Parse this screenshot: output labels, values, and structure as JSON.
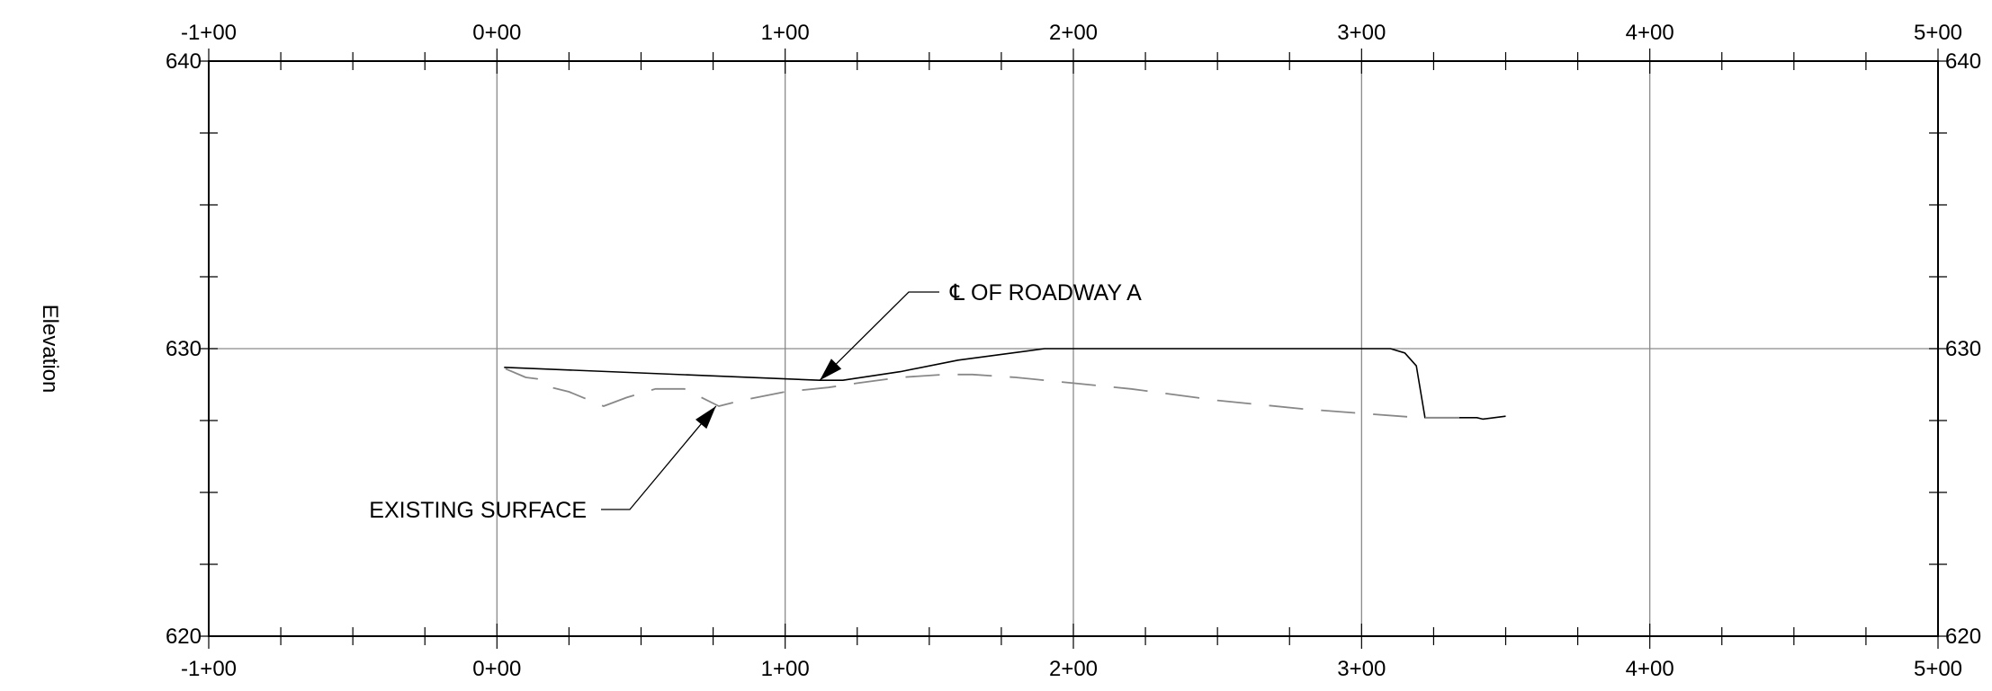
{
  "chart_data": {
    "type": "line",
    "title": "",
    "xlabel": "",
    "ylabel": "Elevation",
    "xlim": [
      -100,
      500
    ],
    "ylim": [
      620,
      640
    ],
    "x_major_step": 100,
    "x_minor_step": 25,
    "y_major_step": 10,
    "y_minor_step": 2.5,
    "x_tick_labels": [
      "-1+00",
      "0+00",
      "1+00",
      "2+00",
      "3+00",
      "4+00",
      "5+00"
    ],
    "y_tick_labels": [
      "620",
      "630",
      "640"
    ],
    "grid": true,
    "series": [
      {
        "style": "solid",
        "color": "#000000",
        "points": [
          [
            2.5,
            629.35
          ],
          [
            112,
            628.9
          ],
          [
            120,
            628.9
          ],
          [
            140,
            629.2
          ],
          [
            160,
            629.6
          ],
          [
            190,
            630.0
          ],
          [
            310,
            630.0
          ],
          [
            315,
            629.85
          ],
          [
            319,
            629.4
          ],
          [
            321,
            628.2
          ],
          [
            322,
            627.6
          ],
          [
            340,
            627.6
          ],
          [
            342,
            627.55
          ],
          [
            350,
            627.65
          ]
        ]
      },
      {
        "style": "dashed",
        "color": "#888888",
        "points": [
          [
            3,
            629.3
          ],
          [
            10,
            629.0
          ],
          [
            14,
            628.95
          ],
          [
            17,
            628.7
          ],
          [
            25,
            628.5
          ],
          [
            37,
            628.0
          ],
          [
            45,
            628.3
          ],
          [
            55,
            628.6
          ],
          [
            65,
            628.6
          ],
          [
            77,
            628.0
          ],
          [
            85,
            628.2
          ],
          [
            100,
            628.5
          ],
          [
            115,
            628.65
          ],
          [
            125,
            628.8
          ],
          [
            140,
            629.0
          ],
          [
            155,
            629.1
          ],
          [
            165,
            629.1
          ],
          [
            180,
            629.0
          ],
          [
            200,
            628.8
          ],
          [
            220,
            628.6
          ],
          [
            250,
            628.2
          ],
          [
            280,
            627.9
          ],
          [
            300,
            627.75
          ],
          [
            320,
            627.6
          ],
          [
            340,
            627.6
          ]
        ]
      }
    ],
    "annotations": [
      {
        "text": "℄ OF ROADWAY A",
        "target": [
          112,
          628.9
        ]
      },
      {
        "text": "EXISTING SURFACE",
        "target": [
          76,
          628.0
        ]
      }
    ]
  }
}
